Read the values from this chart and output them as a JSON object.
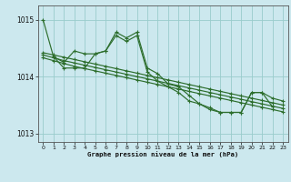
{
  "title": "Graphe pression niveau de la mer (hPa)",
  "bg_color": "#cce8ee",
  "grid_color": "#99cccc",
  "line_color": "#2d6e2d",
  "xlim": [
    -0.5,
    23.5
  ],
  "ylim": [
    1012.85,
    1015.25
  ],
  "yticks": [
    1013,
    1014,
    1015
  ],
  "xticks": [
    0,
    1,
    2,
    3,
    4,
    5,
    6,
    7,
    8,
    9,
    10,
    11,
    12,
    13,
    14,
    15,
    16,
    17,
    18,
    19,
    20,
    21,
    22,
    23
  ],
  "series1": [
    1015.0,
    1014.35,
    1014.25,
    1014.45,
    1014.4,
    1014.4,
    1014.45,
    1014.72,
    1014.62,
    1014.72,
    1014.08,
    1013.92,
    1013.82,
    1013.72,
    1013.57,
    1013.52,
    1013.42,
    1013.37,
    1013.37,
    1013.37,
    1013.72,
    1013.72,
    1013.47,
    null
  ],
  "series2": [
    null,
    1014.35,
    1014.15,
    1014.15,
    1014.15,
    1014.4,
    1014.45,
    1014.78,
    1014.68,
    1014.78,
    1014.15,
    1014.05,
    1013.87,
    1013.82,
    1013.67,
    1013.52,
    1013.45,
    1013.37,
    1013.37,
    1013.37,
    1013.72,
    1013.72,
    1013.62,
    1013.57
  ],
  "series3": [
    1014.42,
    1014.38,
    1014.34,
    1014.3,
    1014.26,
    1014.22,
    1014.18,
    1014.14,
    1014.1,
    1014.06,
    1014.02,
    1013.98,
    1013.94,
    1013.9,
    1013.86,
    1013.82,
    1013.78,
    1013.74,
    1013.7,
    1013.66,
    1013.62,
    1013.58,
    1013.54,
    1013.5
  ],
  "series4": [
    1014.38,
    1014.33,
    1014.28,
    1014.24,
    1014.2,
    1014.16,
    1014.12,
    1014.08,
    1014.04,
    1014.0,
    1013.96,
    1013.92,
    1013.88,
    1013.84,
    1013.8,
    1013.76,
    1013.72,
    1013.68,
    1013.64,
    1013.6,
    1013.56,
    1013.52,
    1013.48,
    1013.44
  ],
  "series5": [
    1014.33,
    1014.28,
    1014.23,
    1014.18,
    1014.14,
    1014.1,
    1014.06,
    1014.02,
    1013.98,
    1013.94,
    1013.9,
    1013.86,
    1013.82,
    1013.78,
    1013.74,
    1013.7,
    1013.66,
    1013.62,
    1013.58,
    1013.54,
    1013.5,
    1013.46,
    1013.42,
    1013.38
  ]
}
